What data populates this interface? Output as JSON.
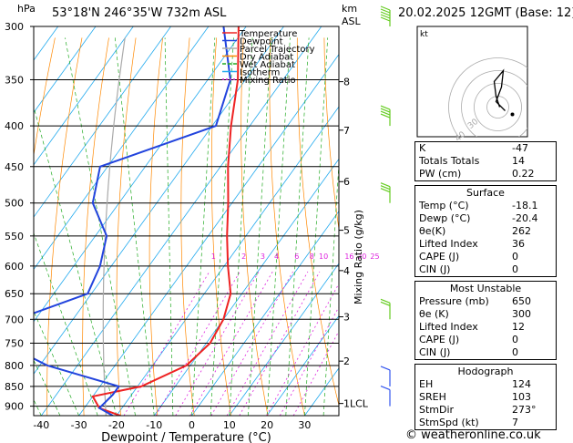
{
  "header": {
    "hpa_label": "hPa",
    "location": "53°18'N  246°35'W  732m  ASL",
    "km_label": "km",
    "asl_label": "ASL",
    "datetime": "20.02.2025  12GMT  (Base: 12)"
  },
  "colors": {
    "temperature": "#ee2222",
    "dewpoint": "#2244dd",
    "parcel": "#aaaaaa",
    "dry_adiabat": "#ff8800",
    "wet_adiabat": "#22aa22",
    "isotherm": "#22aaee",
    "mixing_ratio": "#dd22dd",
    "wind": "#66cc22"
  },
  "chart_data": {
    "type": "skew-t",
    "xlabel": "Dewpoint / Temperature (°C)",
    "x_ticks": [
      -40,
      -30,
      -20,
      -10,
      0,
      10,
      20,
      30
    ],
    "xlim": [
      -40,
      39
    ],
    "pressure_levels": [
      300,
      350,
      400,
      450,
      500,
      550,
      600,
      650,
      700,
      750,
      800,
      850,
      900
    ],
    "ylim": [
      300,
      925
    ],
    "km_ticks": [
      {
        "km": "8",
        "p": 352
      },
      {
        "km": "7",
        "p": 405
      },
      {
        "km": "6",
        "p": 470
      },
      {
        "km": "5",
        "p": 541
      },
      {
        "km": "4",
        "p": 608
      },
      {
        "km": "3",
        "p": 695
      },
      {
        "km": "2",
        "p": 790
      },
      {
        "km": "1LCL",
        "p": 893
      }
    ],
    "mixing_ratio_label": "Mixing Ratio (g/kg)",
    "mixing_ratio_values": [
      "1",
      "2",
      "3",
      "4",
      "6",
      "8",
      "10",
      "16",
      "20",
      "25"
    ],
    "legend": [
      "Temperature",
      "Dewpoint",
      "Parcel Trajectory",
      "Dry Adiabat",
      "Wet Adiabat",
      "Isotherm",
      "Mixing Ratio"
    ],
    "series": [
      {
        "name": "Temperature",
        "points": [
          [
            300,
            -62
          ],
          [
            350,
            -52
          ],
          [
            400,
            -45
          ],
          [
            450,
            -38
          ],
          [
            500,
            -31
          ],
          [
            550,
            -25
          ],
          [
            600,
            -19
          ],
          [
            650,
            -13
          ],
          [
            700,
            -10
          ],
          [
            750,
            -9
          ],
          [
            800,
            -11
          ],
          [
            850,
            -19
          ],
          [
            875,
            -30
          ],
          [
            905,
            -26
          ],
          [
            925,
            -19
          ]
        ]
      },
      {
        "name": "Dewpoint",
        "points": [
          [
            300,
            -66
          ],
          [
            350,
            -54
          ],
          [
            400,
            -49
          ],
          [
            450,
            -72
          ],
          [
            500,
            -67
          ],
          [
            550,
            -57
          ],
          [
            600,
            -53
          ],
          [
            650,
            -51
          ],
          [
            700,
            -65
          ],
          [
            750,
            -64
          ],
          [
            800,
            -48
          ],
          [
            850,
            -25
          ],
          [
            870,
            -25
          ],
          [
            905,
            -26
          ],
          [
            925,
            -21
          ]
        ]
      }
    ],
    "wind_barbs": [
      {
        "p": 300,
        "dir": "W",
        "speed_kt": 55
      },
      {
        "p": 400,
        "dir": "W",
        "speed_kt": 40
      },
      {
        "p": 500,
        "dir": "W",
        "speed_kt": 30
      },
      {
        "p": 700,
        "dir": "W",
        "speed_kt": 15
      },
      {
        "p": 850,
        "dir": "W",
        "speed_kt": 10
      },
      {
        "p": 900,
        "dir": "W",
        "speed_kt": 7
      }
    ],
    "hodograph": {
      "label": "kt",
      "ring_labels": [
        "40",
        "30"
      ]
    }
  },
  "indices": [
    {
      "label": "K",
      "value": "-47"
    },
    {
      "label": "Totals Totals",
      "value": "14"
    },
    {
      "label": "PW (cm)",
      "value": "0.22"
    }
  ],
  "surface": {
    "title": "Surface",
    "rows": [
      {
        "label": "Temp (°C)",
        "value": "-18.1"
      },
      {
        "label": "Dewp (°C)",
        "value": "-20.4"
      },
      {
        "label": "θe(K)",
        "value": "262"
      },
      {
        "label": "Lifted Index",
        "value": "36"
      },
      {
        "label": "CAPE (J)",
        "value": "0"
      },
      {
        "label": "CIN (J)",
        "value": "0"
      }
    ]
  },
  "most_unstable": {
    "title": "Most Unstable",
    "rows": [
      {
        "label": "Pressure (mb)",
        "value": "650"
      },
      {
        "label": "θe (K)",
        "value": "300"
      },
      {
        "label": "Lifted Index",
        "value": "12"
      },
      {
        "label": "CAPE (J)",
        "value": "0"
      },
      {
        "label": "CIN (J)",
        "value": "0"
      }
    ]
  },
  "hodograph_table": {
    "title": "Hodograph",
    "rows": [
      {
        "label": "EH",
        "value": "124"
      },
      {
        "label": "SREH",
        "value": "103"
      },
      {
        "label": "StmDir",
        "value": "273°"
      },
      {
        "label": "StmSpd (kt)",
        "value": "7"
      }
    ]
  },
  "copyright": "© weatheronline.co.uk"
}
